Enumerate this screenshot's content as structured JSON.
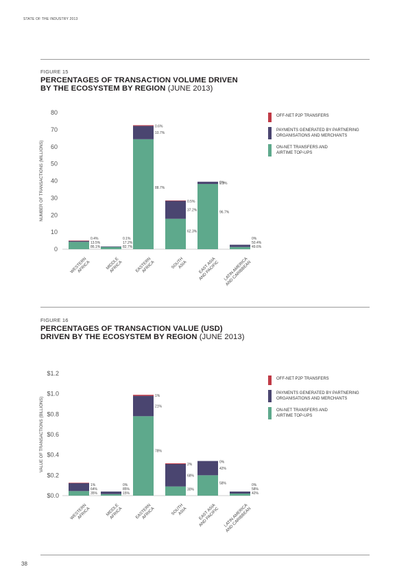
{
  "header": {
    "running_title": "STATE OF THE INDUSTRY 2013"
  },
  "page_number": "38",
  "colors": {
    "off_net": "#c03a46",
    "partner": "#4a4570",
    "on_net": "#5ea98c",
    "text": "#231f20"
  },
  "figures": [
    {
      "label": "FIGURE 15",
      "title_bold_1": "PERCENTAGES OF TRANSACTION VOLUME DRIVEN",
      "title_bold_2": "BY THE ECOSYSTEM BY REGION",
      "title_light": "(JUNE 2013)"
    },
    {
      "label": "FIGURE 16",
      "title_bold_1": "PERCENTAGES OF TRANSACTION VALUE (USD)",
      "title_bold_2": "DRIVEN BY THE ECOSYSTEM BY REGION",
      "title_light": "(JUNE 2013)"
    }
  ],
  "chart_data": [
    {
      "type": "bar",
      "stacked": true,
      "ylabel": "NUMBER OF TRANSACTIONS (MILLIONS)",
      "ylim": [
        0,
        80
      ],
      "yticks": [
        "0",
        "10",
        "20",
        "30",
        "40",
        "50",
        "60",
        "70",
        "80"
      ],
      "yticks_values": [
        0,
        10,
        20,
        30,
        40,
        50,
        60,
        70,
        80
      ],
      "categories": [
        [
          "WESTERN",
          "AFRICA"
        ],
        [
          "MIDDLE",
          "AFRICA"
        ],
        [
          "EASTERN",
          "AFRICA"
        ],
        [
          "SOUTH",
          "ASIA"
        ],
        [
          "EAST ASIA",
          "AND PACIFIC"
        ],
        [
          "LATIN AMERICA",
          "AND CARIBBEAN"
        ]
      ],
      "series": [
        {
          "name": "ON-NET TRANSFERS AND AIRTIME TOP-UPS",
          "color_key": "on_net",
          "values": [
            4.3,
            1.3,
            64.4,
            17.8,
            38.2,
            1.3
          ]
        },
        {
          "name": "PAYMENTS GENERATED BY PARTNERING ORGANISATIONS AND MERCHANTS",
          "color_key": "partner",
          "values": [
            0.7,
            0.3,
            7.8,
            10.6,
            1.3,
            1.3
          ]
        },
        {
          "name": "OFF-NET P2P TRANSFERS",
          "color_key": "off_net",
          "values": [
            0.02,
            0.0,
            0.4,
            0.1,
            0.0,
            0.0
          ]
        }
      ],
      "data_labels": [
        [
          "86.1%",
          "13.5%",
          "0.4%"
        ],
        [
          "82.7%",
          "17.2%",
          "0.1%"
        ],
        [
          "88.7%",
          "10.7%",
          "0.6%"
        ],
        [
          "62.3%",
          "37.2%",
          "0.5%"
        ],
        [
          "96.7%",
          "3.3%",
          "0%"
        ],
        [
          "49.6%",
          "50.4%",
          "0%"
        ]
      ],
      "legend_lines": [
        [
          "OFF-NET P2P TRANSFERS"
        ],
        [
          "PAYMENTS GENERATED BY PARTNERING",
          "ORGANISATIONS AND MERCHANTS"
        ],
        [
          "ON-NET TRANSFERS AND",
          "AIRTIME TOP-UPS"
        ]
      ],
      "legend_position": "right",
      "grid": false
    },
    {
      "type": "bar",
      "stacked": true,
      "ylabel": "VALUE OF TRANSACTIONS (BILLIONS)",
      "ylim": [
        0,
        1.2
      ],
      "yticks": [
        "$0.0",
        "$0.2",
        "$0.4",
        "$0.6",
        "$0.8",
        "$1.0",
        "$1.2"
      ],
      "yticks_values": [
        0,
        0.2,
        0.4,
        0.6,
        0.8,
        1.0,
        1.2
      ],
      "categories": [
        [
          "WESTERN",
          "AFRICA"
        ],
        [
          "MIDDLE",
          "AFRICA"
        ],
        [
          "EASTERN",
          "AFRICA"
        ],
        [
          "SOUTH",
          "ASIA"
        ],
        [
          "EAST ASIA",
          "AND PACIFIC"
        ],
        [
          "LATIN AMERICA",
          "AND CARIBBEAN"
        ]
      ],
      "series": [
        {
          "name": "ON-NET TRANSFERS AND AIRTIME TOP-UPS",
          "color_key": "on_net",
          "values": [
            0.045,
            0.015,
            0.78,
            0.09,
            0.2,
            0.02
          ]
        },
        {
          "name": "PAYMENTS GENERATED BY PARTNERING ORGANISATIONS AND MERCHANTS",
          "color_key": "partner",
          "values": [
            0.08,
            0.025,
            0.2,
            0.22,
            0.14,
            0.02
          ]
        },
        {
          "name": "OFF-NET P2P TRANSFERS",
          "color_key": "off_net",
          "values": [
            0.001,
            0.0,
            0.01,
            0.007,
            0.0,
            0.0
          ]
        }
      ],
      "data_labels": [
        [
          "35%",
          "64%",
          "1%"
        ],
        [
          "15%",
          "85%",
          "0%"
        ],
        [
          "78%",
          "21%",
          "1%"
        ],
        [
          "30%",
          "68%",
          "2%"
        ],
        [
          "58%",
          "42%",
          "0%"
        ],
        [
          "42%",
          "58%",
          "0%"
        ]
      ],
      "legend_lines": [
        [
          "OFF-NET P2P TRANSFERS"
        ],
        [
          "PAYMENTS GENERATED BY PARTNERING",
          "ORGANISATIONS AND MERCHANTS"
        ],
        [
          "ON-NET TRANSFERS AND",
          "AIRTIME TOP-UPS"
        ]
      ],
      "legend_position": "right",
      "grid": false
    }
  ]
}
